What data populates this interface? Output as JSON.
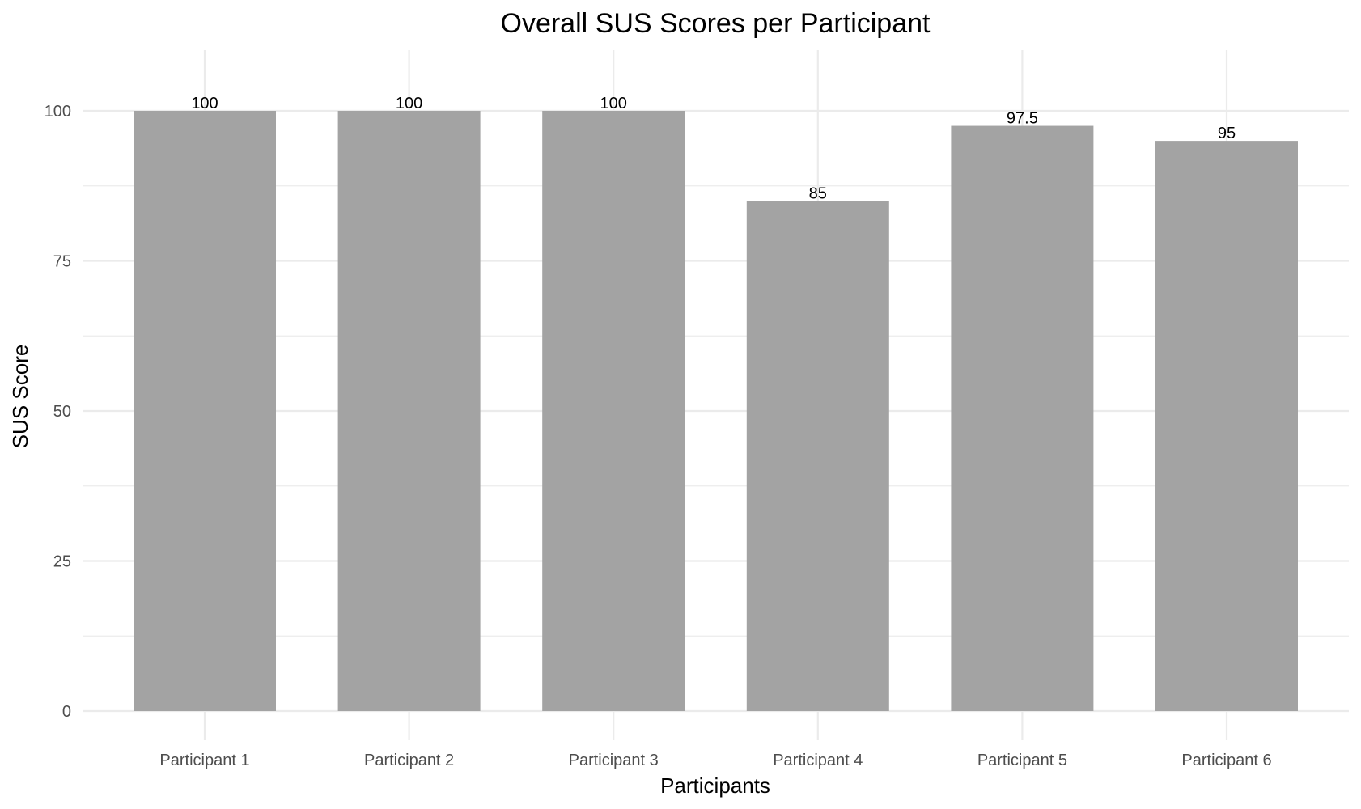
{
  "chart_data": {
    "type": "bar",
    "title": "Overall SUS Scores per Participant",
    "xlabel": "Participants",
    "ylabel": "SUS Score",
    "categories": [
      "Participant 1",
      "Participant 2",
      "Participant 3",
      "Participant 4",
      "Participant 5",
      "Participant 6"
    ],
    "values": [
      100,
      100,
      100,
      85,
      97.5,
      95
    ],
    "value_labels": [
      "100",
      "100",
      "100",
      "85",
      "97.5",
      "95"
    ],
    "ylim": [
      0,
      100
    ],
    "y_ticks": [
      0,
      25,
      50,
      75,
      100
    ],
    "y_tick_labels": [
      "0",
      "25",
      "50",
      "75",
      "100"
    ],
    "y_minor_ticks": [
      12.5,
      37.5,
      62.5,
      87.5
    ],
    "grid": true,
    "legend": "none",
    "bar_color": "#a3a3a3",
    "grid_color": "#ebebeb"
  }
}
